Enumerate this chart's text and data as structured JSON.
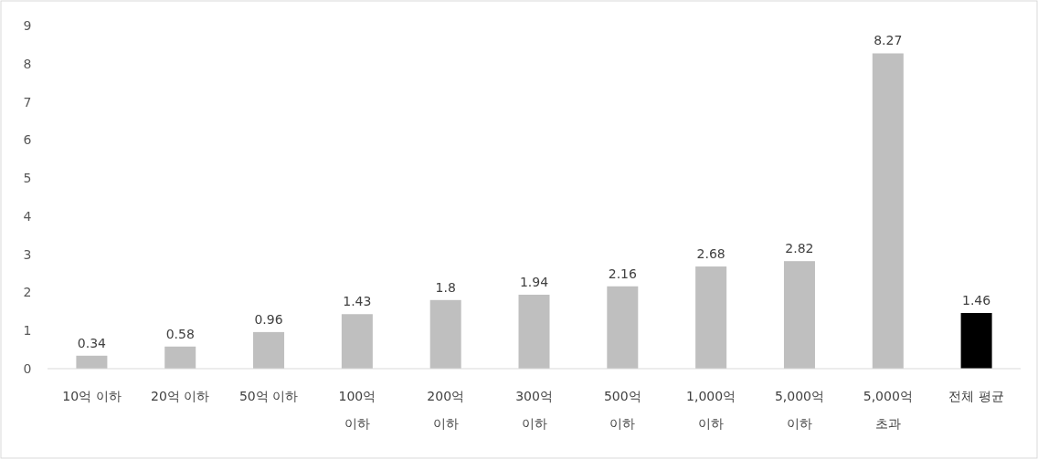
{
  "chart_data": {
    "type": "bar",
    "categories": [
      "10억 이하",
      "20억 이하",
      "50억 이하",
      "100억\n이하",
      "200억\n이하",
      "300억\n이하",
      "500억\n이하",
      "1,000억\n이하",
      "5,000억\n이하",
      "5,000억\n초과",
      "전체 평균"
    ],
    "values": [
      0.34,
      0.58,
      0.96,
      1.43,
      1.8,
      1.94,
      2.16,
      2.68,
      2.82,
      8.27,
      1.46
    ],
    "colors": [
      "#bfbfbf",
      "#bfbfbf",
      "#bfbfbf",
      "#bfbfbf",
      "#bfbfbf",
      "#bfbfbf",
      "#bfbfbf",
      "#bfbfbf",
      "#bfbfbf",
      "#bfbfbf",
      "#000000"
    ],
    "ylim": [
      0,
      9
    ],
    "yticks": [
      0,
      1,
      2,
      3,
      4,
      5,
      6,
      7,
      8,
      9
    ],
    "grid": false,
    "data_labels": true
  }
}
